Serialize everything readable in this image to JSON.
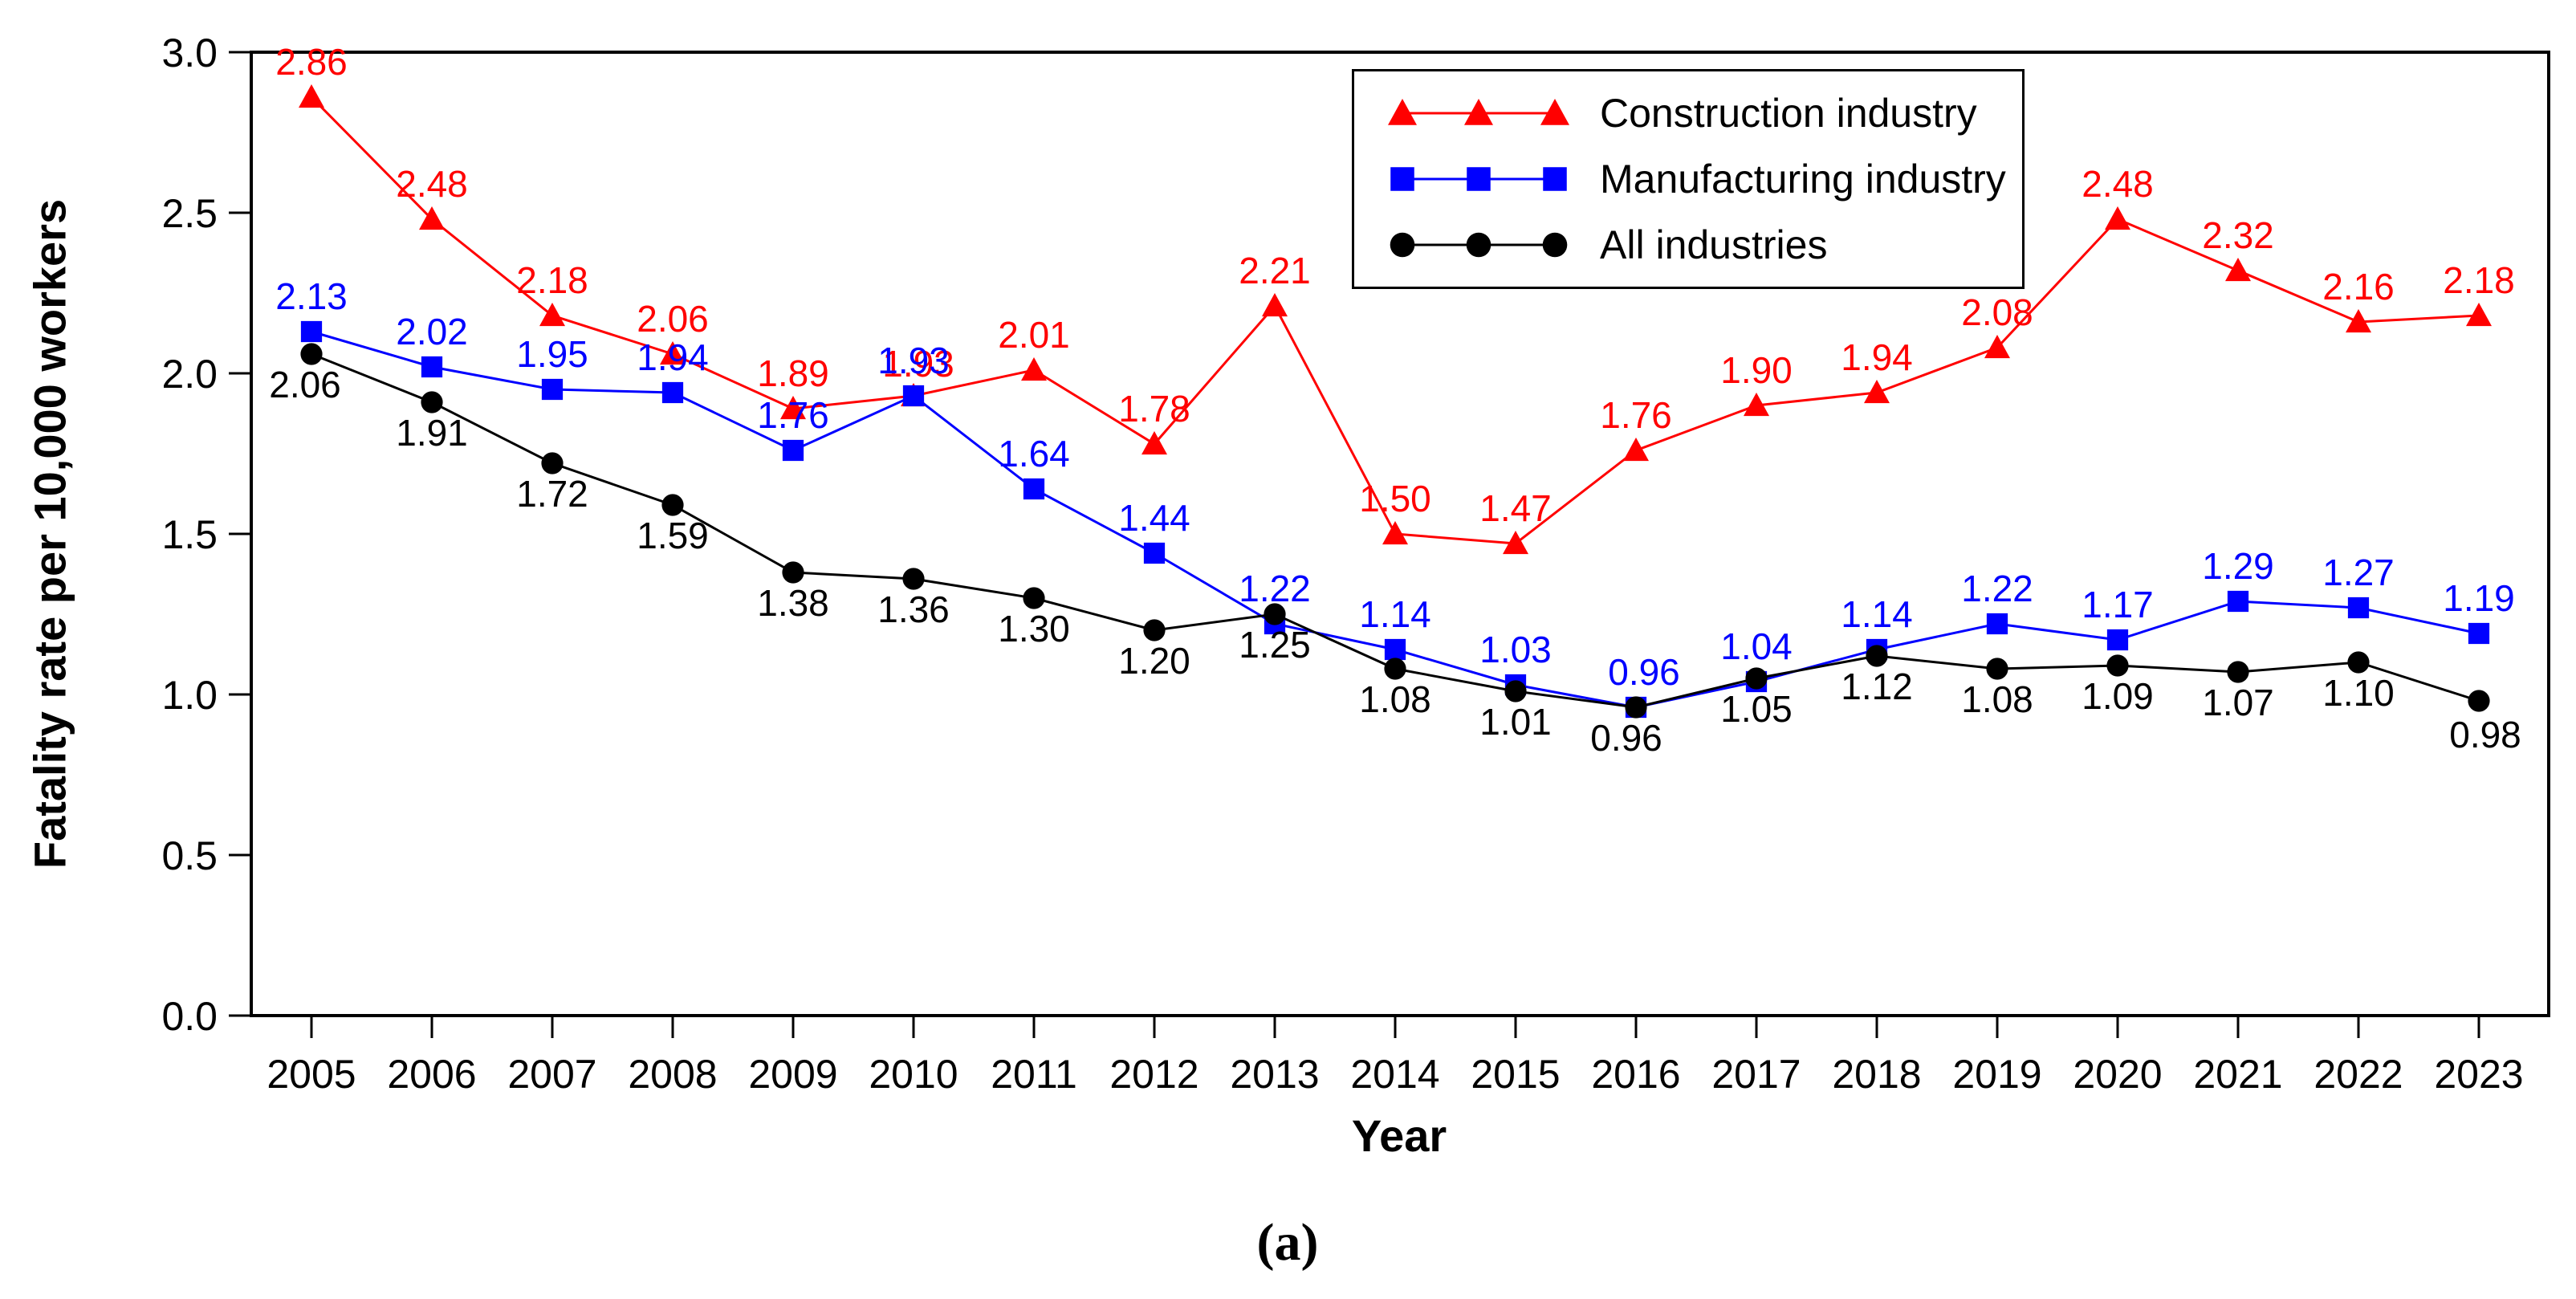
{
  "figure": {
    "caption": "(a)",
    "colors": {
      "construction": "#ff0000",
      "manufacturing": "#0000ff",
      "all_industries": "#000000",
      "axis": "#000000",
      "background": "#ffffff"
    }
  },
  "chart_data": {
    "type": "line",
    "title": "",
    "xlabel": "Year",
    "ylabel": "Fatality rate per 10,000 workers",
    "x": [
      2005,
      2006,
      2007,
      2008,
      2009,
      2010,
      2011,
      2012,
      2013,
      2014,
      2015,
      2016,
      2017,
      2018,
      2019,
      2020,
      2021,
      2022,
      2023
    ],
    "ylim": [
      0.0,
      3.0
    ],
    "yticks": [
      0.0,
      0.5,
      1.0,
      1.5,
      2.0,
      2.5,
      3.0
    ],
    "grid": false,
    "legend": {
      "position": "top-center-inside",
      "entries": [
        "Construction industry",
        "Manufacturing industry",
        "All industries"
      ]
    },
    "series": [
      {
        "name": "Construction industry",
        "color": "#ff0000",
        "marker": "triangle",
        "label_position": "above",
        "values": [
          2.86,
          2.48,
          2.18,
          2.06,
          1.89,
          1.93,
          2.01,
          1.78,
          2.21,
          1.5,
          1.47,
          1.76,
          1.9,
          1.94,
          2.08,
          2.48,
          2.32,
          2.16,
          2.18
        ],
        "label_offsets": {
          "5": [
            6,
            4
          ]
        }
      },
      {
        "name": "Manufacturing industry",
        "color": "#0000ff",
        "marker": "square",
        "label_position": "above",
        "values": [
          2.13,
          2.02,
          1.95,
          1.94,
          1.76,
          1.93,
          1.64,
          1.44,
          1.22,
          1.14,
          1.03,
          0.96,
          1.04,
          1.14,
          1.22,
          1.17,
          1.29,
          1.27,
          1.19
        ],
        "label_offsets": {
          "11": [
            10,
            0
          ]
        }
      },
      {
        "name": "All industries",
        "color": "#000000",
        "marker": "circle",
        "label_position": "below",
        "values": [
          2.06,
          1.91,
          1.72,
          1.59,
          1.38,
          1.36,
          1.3,
          1.2,
          1.25,
          1.08,
          1.01,
          0.96,
          1.05,
          1.12,
          1.08,
          1.09,
          1.07,
          1.1,
          0.98
        ],
        "label_offsets": {
          "0": [
            -8,
            0
          ],
          "11": [
            -12,
            0
          ],
          "18": [
            8,
            4
          ]
        }
      }
    ]
  }
}
